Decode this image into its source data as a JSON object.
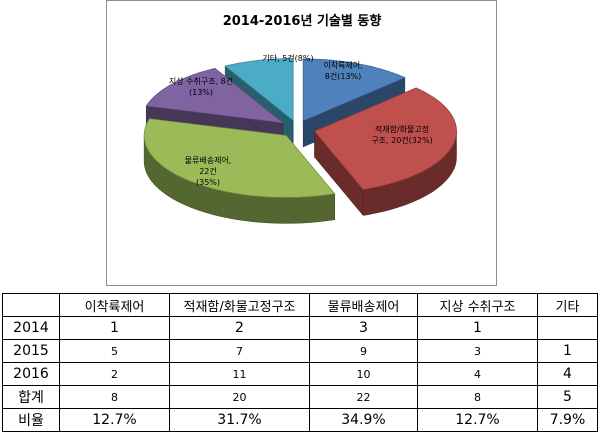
{
  "chart_data": {
    "type": "pie",
    "title": "2014-2016년 기술별 동향",
    "slices": [
      {
        "category": "이착륙제어",
        "value": 8,
        "percent": 13,
        "label_lines": [
          "이착륙제어,",
          "8건(13%)"
        ],
        "color": "#4f81bd"
      },
      {
        "category": "적재함/화물고정구조",
        "value": 20,
        "percent": 32,
        "label_lines": [
          "적재함/화물고정",
          "구조, 20건(32%)"
        ],
        "color": "#c0504d"
      },
      {
        "category": "물류배송제어",
        "value": 22,
        "percent": 35,
        "label_lines": [
          "물류배송제어,",
          "22건",
          "(35%)"
        ],
        "color": "#9bbb59"
      },
      {
        "category": "지상 수취구조",
        "value": 8,
        "percent": 13,
        "label_lines": [
          "지상 수취구조, 8건",
          "(13%)"
        ],
        "color": "#8064a2"
      },
      {
        "category": "기타",
        "value": 5,
        "percent": 8,
        "label_lines": [
          "기타, 5건(8%)"
        ],
        "color": "#4bacc6"
      }
    ]
  },
  "table": {
    "header": [
      "",
      "이착륙제어",
      "적재함/화물고정구조",
      "물류배송제어",
      "지상 수취구조",
      "기타"
    ],
    "rows": [
      [
        "2014",
        "1",
        "2",
        "3",
        "1",
        ""
      ],
      [
        "2015",
        "5",
        "7",
        "9",
        "3",
        "1"
      ],
      [
        "2016",
        "2",
        "11",
        "10",
        "4",
        "4"
      ],
      [
        "합계",
        "8",
        "20",
        "22",
        "8",
        "5"
      ],
      [
        "비율",
        "12.7%",
        "31.7%",
        "34.9%",
        "12.7%",
        "7.9%"
      ]
    ]
  }
}
